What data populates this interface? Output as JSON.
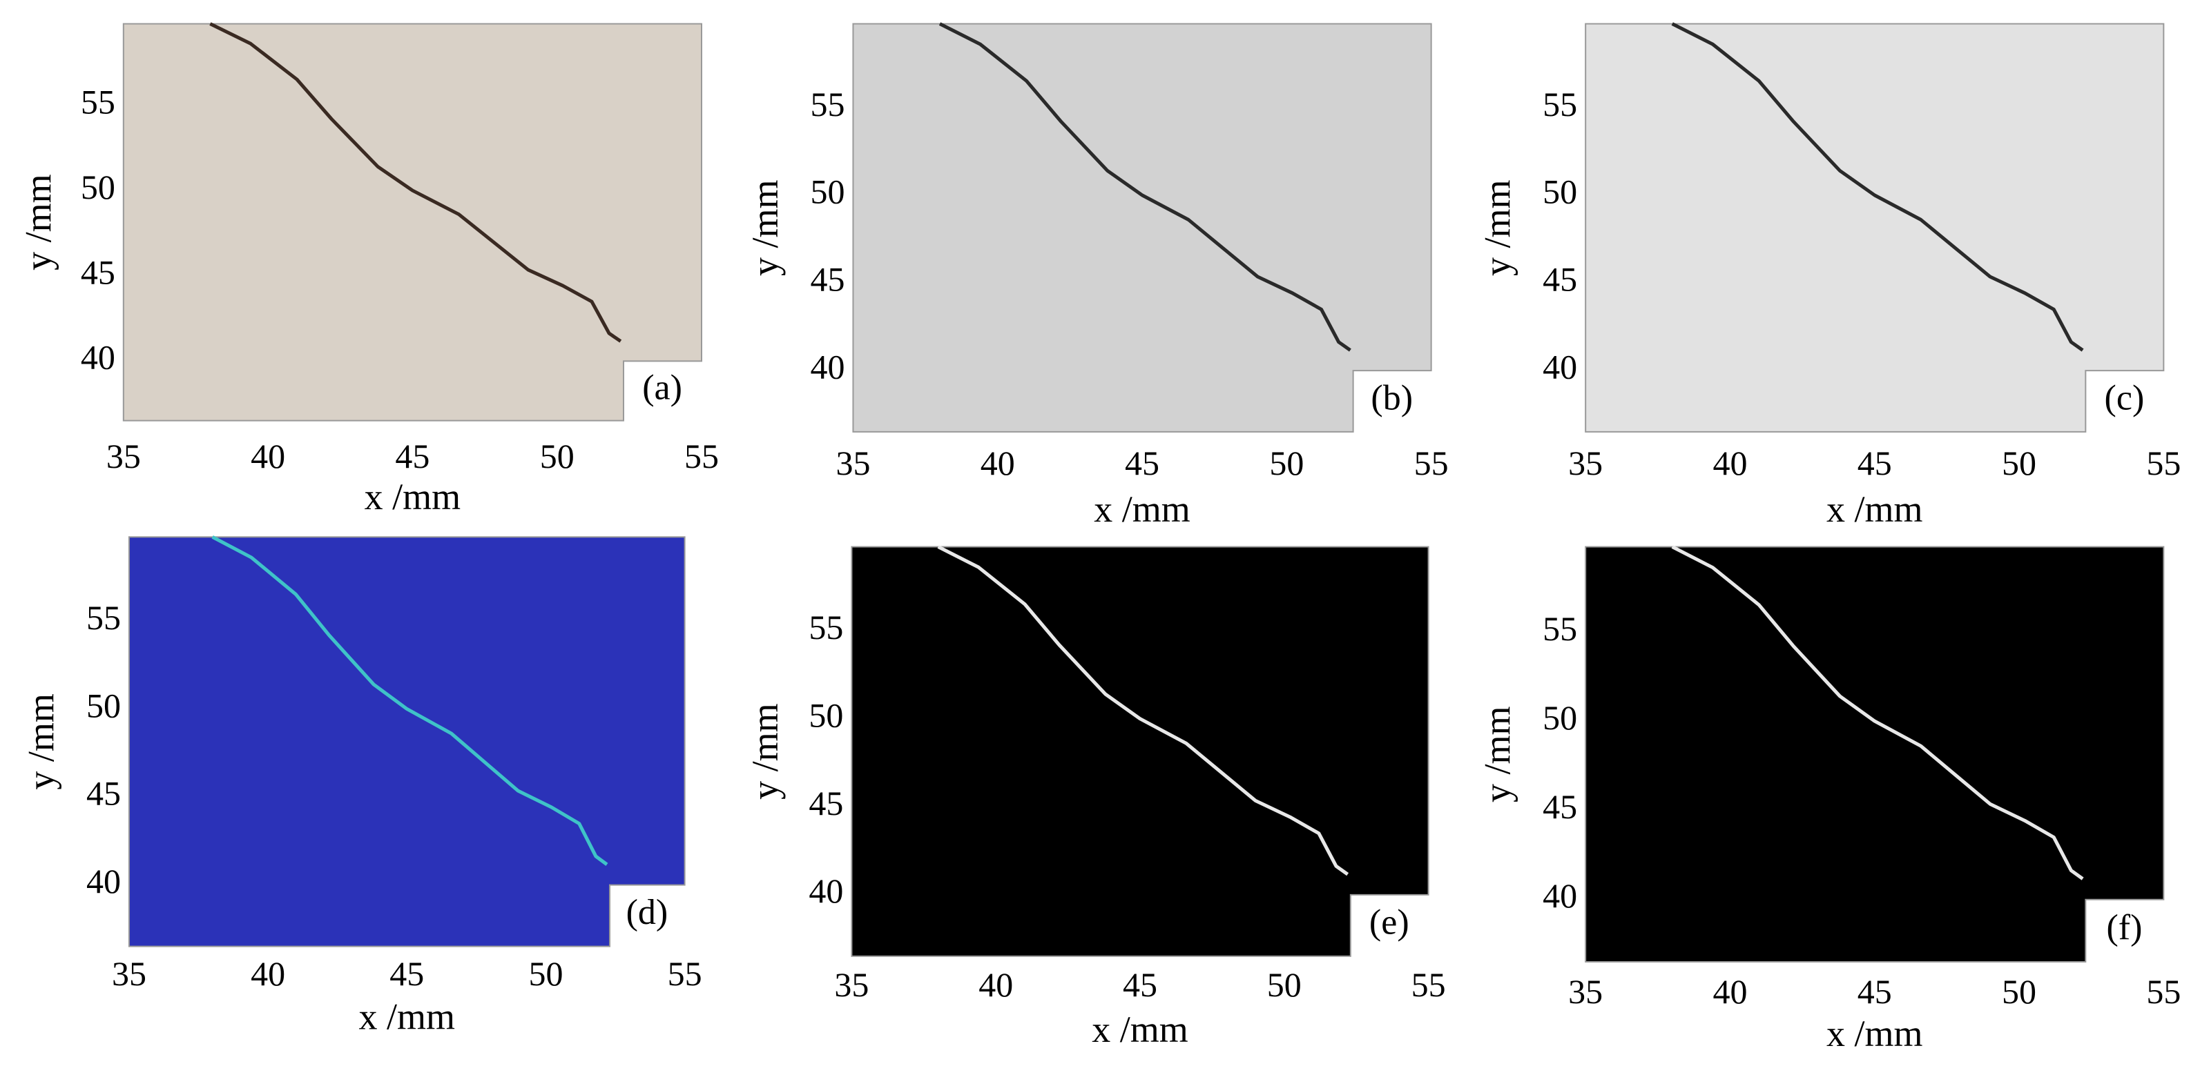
{
  "chart_data": [
    {
      "type": "image",
      "annotation": "(a)",
      "xlabel": "x /mm",
      "ylabel": "y /mm",
      "xlim": [
        35,
        55
      ],
      "ylim": [
        36.5,
        59.8
      ],
      "xticks": [
        35,
        40,
        45,
        50,
        55
      ],
      "yticks": [
        40,
        45,
        50,
        55
      ],
      "color": "#d9d1c7",
      "crack_color": "#3a2a22"
    },
    {
      "type": "image",
      "annotation": "(b)",
      "xlabel": "x /mm",
      "ylabel": "y /mm",
      "xlim": [
        35,
        55
      ],
      "ylim": [
        36.5,
        59.8
      ],
      "xticks": [
        35,
        40,
        45,
        50,
        55
      ],
      "yticks": [
        40,
        45,
        50,
        55
      ],
      "color": "#d2d2d2",
      "crack_color": "#2a2a2a"
    },
    {
      "type": "image",
      "annotation": "(c)",
      "xlabel": "x /mm",
      "ylabel": "y /mm",
      "xlim": [
        35,
        55
      ],
      "ylim": [
        36.5,
        59.8
      ],
      "xticks": [
        35,
        40,
        45,
        50,
        55
      ],
      "yticks": [
        40,
        45,
        50,
        55
      ],
      "color": "#e2e2e2",
      "crack_color": "#2a2a2a"
    },
    {
      "type": "image",
      "annotation": "(d)",
      "xlabel": "x /mm",
      "ylabel": "y /mm",
      "xlim": [
        35,
        55
      ],
      "ylim": [
        36.5,
        59.8
      ],
      "xticks": [
        35,
        40,
        45,
        50,
        55
      ],
      "yticks": [
        40,
        45,
        50,
        55
      ],
      "color": "#2b32b8",
      "crack_color": "#3fc3c8"
    },
    {
      "type": "image",
      "annotation": "(e)",
      "xlabel": "x /mm",
      "ylabel": "y /mm",
      "xlim": [
        35,
        55
      ],
      "ylim": [
        36.5,
        59.8
      ],
      "xticks": [
        35,
        40,
        45,
        50,
        55
      ],
      "yticks": [
        40,
        45,
        50,
        55
      ],
      "color": "#000000",
      "crack_color": "#e8e8e8"
    },
    {
      "type": "image",
      "annotation": "(f)",
      "xlabel": "x /mm",
      "ylabel": "y /mm",
      "xlim": [
        35,
        55
      ],
      "ylim": [
        36.5,
        59.8
      ],
      "xticks": [
        35,
        40,
        45,
        50,
        55
      ],
      "yticks": [
        40,
        45,
        50,
        55
      ],
      "color": "#000000",
      "crack_color": "#e8e8e8"
    }
  ]
}
